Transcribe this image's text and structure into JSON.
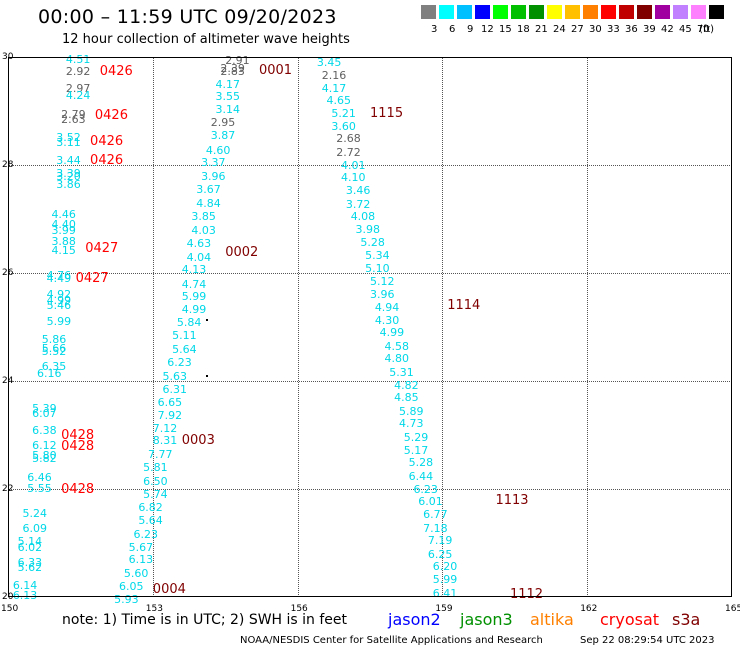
{
  "title": "00:00 – 11:59 UTC 09/20/2023",
  "subtitle": "12 hour collection of altimeter wave heights",
  "legend": {
    "colors": [
      "#808080",
      "#00ffff",
      "#00c0ff",
      "#0000ff",
      "#00ff00",
      "#00c000",
      "#009000",
      "#ffff00",
      "#ffc000",
      "#ff8000",
      "#ff0000",
      "#c00000",
      "#800000",
      "#a000a0",
      "#c080ff",
      "#ff80ff",
      "#000000"
    ],
    "labels": [
      "3",
      "6",
      "9",
      "12",
      "15",
      "18",
      "21",
      "24",
      "27",
      "30",
      "33",
      "36",
      "39",
      "42",
      "45",
      "70",
      "(ft)"
    ]
  },
  "axes": {
    "lon_range": [
      150,
      165
    ],
    "lat_range": [
      20,
      30
    ],
    "x_ticks": [
      "150",
      "153",
      "156",
      "159",
      "162",
      "165"
    ],
    "y_ticks": [
      "30",
      "28",
      "26",
      "24",
      "22",
      "20"
    ]
  },
  "note": "note:  1) Time is in UTC;  2) SWH is in feet",
  "satellites": [
    {
      "name": "jason2",
      "color": "#0000ff"
    },
    {
      "name": "jason3",
      "color": "#009000"
    },
    {
      "name": "altika",
      "color": "#ff8000"
    },
    {
      "name": "cryosat",
      "color": "#ff0000"
    },
    {
      "name": "s3a",
      "color": "#800000"
    }
  ],
  "footer_left": "NOAA/NESDIS Center for Satellite Applications and Research",
  "footer_right": "Sep 22 08:29:54 UTC 2023",
  "colors": {
    "cyan": "#00d8e8",
    "gray": "#606060",
    "cryosat": "#ff0000",
    "s3a": "#800000"
  },
  "chart_data": {
    "type": "scatter",
    "xlabel": "",
    "ylabel": "",
    "xlim": [
      150,
      165
    ],
    "ylim": [
      20,
      30
    ],
    "time_labels": [
      {
        "label": "0426",
        "sat": "cryosat",
        "lon": 151.9,
        "lat": 29.74
      },
      {
        "label": "0426",
        "sat": "cryosat",
        "lon": 151.8,
        "lat": 28.93
      },
      {
        "label": "0426",
        "sat": "cryosat",
        "lon": 151.7,
        "lat": 28.45
      },
      {
        "label": "0426",
        "sat": "cryosat",
        "lon": 151.7,
        "lat": 28.1
      },
      {
        "label": "0427",
        "sat": "cryosat",
        "lon": 151.6,
        "lat": 26.47
      },
      {
        "label": "0427",
        "sat": "cryosat",
        "lon": 151.4,
        "lat": 25.9
      },
      {
        "label": "0428",
        "sat": "cryosat",
        "lon": 151.1,
        "lat": 23.0
      },
      {
        "label": "0428",
        "sat": "cryosat",
        "lon": 151.1,
        "lat": 22.8
      },
      {
        "label": "0428",
        "sat": "cryosat",
        "lon": 151.1,
        "lat": 22.0
      },
      {
        "label": "0001",
        "sat": "s3a",
        "lon": 155.2,
        "lat": 29.76
      },
      {
        "label": "0002",
        "sat": "s3a",
        "lon": 154.5,
        "lat": 26.38
      },
      {
        "label": "0003",
        "sat": "s3a",
        "lon": 153.6,
        "lat": 22.91
      },
      {
        "label": "0004",
        "sat": "s3a",
        "lon": 153.0,
        "lat": 20.15
      },
      {
        "label": "1115",
        "sat": "s3a",
        "lon": 157.5,
        "lat": 28.97
      },
      {
        "label": "1114",
        "sat": "s3a",
        "lon": 159.1,
        "lat": 25.4
      },
      {
        "label": "1113",
        "sat": "s3a",
        "lon": 160.1,
        "lat": 21.8
      },
      {
        "label": "1112",
        "sat": "s3a",
        "lon": 160.4,
        "lat": 20.05
      }
    ],
    "points": [
      {
        "lon": 151.2,
        "lat": 29.97,
        "swh": "4.51",
        "c": "cyan"
      },
      {
        "lon": 151.2,
        "lat": 29.75,
        "swh": "2.92",
        "c": "gray"
      },
      {
        "lon": 151.2,
        "lat": 29.43,
        "swh": "2.97",
        "c": "gray"
      },
      {
        "lon": 151.2,
        "lat": 29.3,
        "swh": "4.24",
        "c": "cyan"
      },
      {
        "lon": 151.1,
        "lat": 28.95,
        "swh": "2.79",
        "c": "gray"
      },
      {
        "lon": 151.1,
        "lat": 28.85,
        "swh": "2.63",
        "c": "gray"
      },
      {
        "lon": 151.0,
        "lat": 28.52,
        "swh": "3.52",
        "c": "cyan"
      },
      {
        "lon": 151.0,
        "lat": 28.42,
        "swh": "3.11",
        "c": "cyan"
      },
      {
        "lon": 151.0,
        "lat": 28.1,
        "swh": "3.44",
        "c": "cyan"
      },
      {
        "lon": 151.0,
        "lat": 27.85,
        "swh": "3.39",
        "c": "cyan"
      },
      {
        "lon": 151.0,
        "lat": 27.8,
        "swh": "3.20",
        "c": "cyan"
      },
      {
        "lon": 151.0,
        "lat": 27.65,
        "swh": "3.86",
        "c": "cyan"
      },
      {
        "lon": 150.9,
        "lat": 27.1,
        "swh": "4.46",
        "c": "cyan"
      },
      {
        "lon": 150.9,
        "lat": 26.9,
        "swh": "4.40",
        "c": "cyan"
      },
      {
        "lon": 150.9,
        "lat": 26.8,
        "swh": "3.99",
        "c": "cyan"
      },
      {
        "lon": 150.9,
        "lat": 26.6,
        "swh": "3.88",
        "c": "cyan"
      },
      {
        "lon": 150.9,
        "lat": 26.43,
        "swh": "4.15",
        "c": "cyan"
      },
      {
        "lon": 150.8,
        "lat": 25.97,
        "swh": "4.76",
        "c": "cyan"
      },
      {
        "lon": 150.8,
        "lat": 25.9,
        "swh": "4.49",
        "c": "cyan"
      },
      {
        "lon": 150.8,
        "lat": 25.62,
        "swh": "4.92",
        "c": "cyan"
      },
      {
        "lon": 150.8,
        "lat": 25.5,
        "swh": "4.99",
        "c": "cyan"
      },
      {
        "lon": 150.8,
        "lat": 25.4,
        "swh": "5.46",
        "c": "cyan"
      },
      {
        "lon": 150.8,
        "lat": 25.12,
        "swh": "5.99",
        "c": "cyan"
      },
      {
        "lon": 150.7,
        "lat": 24.77,
        "swh": "5.86",
        "c": "cyan"
      },
      {
        "lon": 150.7,
        "lat": 24.62,
        "swh": "5.66",
        "c": "cyan"
      },
      {
        "lon": 150.7,
        "lat": 24.55,
        "swh": "5.52",
        "c": "cyan"
      },
      {
        "lon": 150.7,
        "lat": 24.27,
        "swh": "6.35",
        "c": "cyan"
      },
      {
        "lon": 150.6,
        "lat": 24.15,
        "swh": "6.16",
        "c": "cyan"
      },
      {
        "lon": 150.5,
        "lat": 23.5,
        "swh": "5.39",
        "c": "cyan"
      },
      {
        "lon": 150.5,
        "lat": 23.4,
        "swh": "6.07",
        "c": "cyan"
      },
      {
        "lon": 150.5,
        "lat": 23.1,
        "swh": "6.38",
        "c": "cyan"
      },
      {
        "lon": 150.5,
        "lat": 22.82,
        "swh": "6.12",
        "c": "cyan"
      },
      {
        "lon": 150.5,
        "lat": 22.63,
        "swh": "5.80",
        "c": "cyan"
      },
      {
        "lon": 150.5,
        "lat": 22.57,
        "swh": "5.82",
        "c": "cyan"
      },
      {
        "lon": 150.4,
        "lat": 22.22,
        "swh": "6.46",
        "c": "cyan"
      },
      {
        "lon": 150.4,
        "lat": 22.02,
        "swh": "5.55",
        "c": "cyan"
      },
      {
        "lon": 150.3,
        "lat": 21.55,
        "swh": "5.24",
        "c": "cyan"
      },
      {
        "lon": 150.3,
        "lat": 21.28,
        "swh": "6.09",
        "c": "cyan"
      },
      {
        "lon": 150.2,
        "lat": 21.03,
        "swh": "5.14",
        "c": "cyan"
      },
      {
        "lon": 150.2,
        "lat": 20.93,
        "swh": "6.02",
        "c": "cyan"
      },
      {
        "lon": 150.2,
        "lat": 20.65,
        "swh": "6.33",
        "c": "cyan"
      },
      {
        "lon": 150.2,
        "lat": 20.55,
        "swh": "5.62",
        "c": "cyan"
      },
      {
        "lon": 150.1,
        "lat": 20.22,
        "swh": "6.14",
        "c": "cyan"
      },
      {
        "lon": 150.1,
        "lat": 20.03,
        "swh": "6.13",
        "c": "cyan"
      },
      {
        "lon": 154.5,
        "lat": 29.95,
        "swh": "2.91",
        "c": "gray"
      },
      {
        "lon": 154.4,
        "lat": 29.8,
        "swh": "2.39",
        "c": "gray"
      },
      {
        "lon": 154.4,
        "lat": 29.75,
        "swh": "2.83",
        "c": "gray"
      },
      {
        "lon": 154.3,
        "lat": 29.5,
        "swh": "4.17",
        "c": "cyan"
      },
      {
        "lon": 154.3,
        "lat": 29.27,
        "swh": "3.55",
        "c": "cyan"
      },
      {
        "lon": 154.3,
        "lat": 29.03,
        "swh": "3.14",
        "c": "cyan"
      },
      {
        "lon": 154.2,
        "lat": 28.8,
        "swh": "2.95",
        "c": "gray"
      },
      {
        "lon": 154.2,
        "lat": 28.55,
        "swh": "3.87",
        "c": "cyan"
      },
      {
        "lon": 154.1,
        "lat": 28.28,
        "swh": "4.60",
        "c": "cyan"
      },
      {
        "lon": 154.0,
        "lat": 28.05,
        "swh": "3.37",
        "c": "cyan"
      },
      {
        "lon": 154.0,
        "lat": 27.8,
        "swh": "3.96",
        "c": "cyan"
      },
      {
        "lon": 153.9,
        "lat": 27.55,
        "swh": "3.67",
        "c": "cyan"
      },
      {
        "lon": 153.9,
        "lat": 27.3,
        "swh": "4.84",
        "c": "cyan"
      },
      {
        "lon": 153.8,
        "lat": 27.05,
        "swh": "3.85",
        "c": "cyan"
      },
      {
        "lon": 153.8,
        "lat": 26.8,
        "swh": "4.03",
        "c": "cyan"
      },
      {
        "lon": 153.7,
        "lat": 26.55,
        "swh": "4.63",
        "c": "cyan"
      },
      {
        "lon": 153.7,
        "lat": 26.3,
        "swh": "4.04",
        "c": "cyan"
      },
      {
        "lon": 153.6,
        "lat": 26.07,
        "swh": "4.13",
        "c": "cyan"
      },
      {
        "lon": 153.6,
        "lat": 25.8,
        "swh": "4.74",
        "c": "cyan"
      },
      {
        "lon": 153.6,
        "lat": 25.57,
        "swh": "5.99",
        "c": "cyan"
      },
      {
        "lon": 153.6,
        "lat": 25.33,
        "swh": "4.99",
        "c": "cyan"
      },
      {
        "lon": 153.5,
        "lat": 25.1,
        "swh": "5.84",
        "c": "cyan"
      },
      {
        "lon": 153.4,
        "lat": 24.85,
        "swh": "5.11",
        "c": "cyan"
      },
      {
        "lon": 153.4,
        "lat": 24.6,
        "swh": "5.64",
        "c": "cyan"
      },
      {
        "lon": 153.3,
        "lat": 24.35,
        "swh": "6.23",
        "c": "cyan"
      },
      {
        "lon": 153.2,
        "lat": 24.1,
        "swh": "5.63",
        "c": "cyan"
      },
      {
        "lon": 153.2,
        "lat": 23.86,
        "swh": "6.31",
        "c": "cyan"
      },
      {
        "lon": 153.1,
        "lat": 23.62,
        "swh": "6.65",
        "c": "cyan"
      },
      {
        "lon": 153.1,
        "lat": 23.37,
        "swh": "7.92",
        "c": "cyan"
      },
      {
        "lon": 153.0,
        "lat": 23.13,
        "swh": "7.12",
        "c": "cyan"
      },
      {
        "lon": 153.0,
        "lat": 22.9,
        "swh": "8.31",
        "c": "cyan"
      },
      {
        "lon": 152.9,
        "lat": 22.65,
        "swh": "7.77",
        "c": "cyan"
      },
      {
        "lon": 152.8,
        "lat": 22.4,
        "swh": "5.81",
        "c": "cyan"
      },
      {
        "lon": 152.8,
        "lat": 22.15,
        "swh": "6.50",
        "c": "cyan"
      },
      {
        "lon": 152.8,
        "lat": 21.9,
        "swh": "5.74",
        "c": "cyan"
      },
      {
        "lon": 152.7,
        "lat": 21.66,
        "swh": "6.82",
        "c": "cyan"
      },
      {
        "lon": 152.7,
        "lat": 21.43,
        "swh": "5.64",
        "c": "cyan"
      },
      {
        "lon": 152.6,
        "lat": 21.17,
        "swh": "6.23",
        "c": "cyan"
      },
      {
        "lon": 152.5,
        "lat": 20.93,
        "swh": "5.67",
        "c": "cyan"
      },
      {
        "lon": 152.5,
        "lat": 20.7,
        "swh": "6.13",
        "c": "cyan"
      },
      {
        "lon": 152.4,
        "lat": 20.45,
        "swh": "5.60",
        "c": "cyan"
      },
      {
        "lon": 152.3,
        "lat": 20.2,
        "swh": "6.05",
        "c": "cyan"
      },
      {
        "lon": 152.2,
        "lat": 19.97,
        "swh": "5.93",
        "c": "cyan"
      },
      {
        "lon": 156.4,
        "lat": 29.9,
        "swh": "3.45",
        "c": "cyan"
      },
      {
        "lon": 156.5,
        "lat": 29.67,
        "swh": "2.16",
        "c": "gray"
      },
      {
        "lon": 156.5,
        "lat": 29.43,
        "swh": "4.17",
        "c": "cyan"
      },
      {
        "lon": 156.6,
        "lat": 29.2,
        "swh": "4.65",
        "c": "cyan"
      },
      {
        "lon": 156.7,
        "lat": 28.97,
        "swh": "5.21",
        "c": "cyan"
      },
      {
        "lon": 156.7,
        "lat": 28.73,
        "swh": "3.60",
        "c": "cyan"
      },
      {
        "lon": 156.8,
        "lat": 28.5,
        "swh": "2.68",
        "c": "gray"
      },
      {
        "lon": 156.8,
        "lat": 28.25,
        "swh": "2.72",
        "c": "gray"
      },
      {
        "lon": 156.9,
        "lat": 28.0,
        "swh": "4.01",
        "c": "cyan"
      },
      {
        "lon": 156.9,
        "lat": 27.77,
        "swh": "4.10",
        "c": "cyan"
      },
      {
        "lon": 157.0,
        "lat": 27.53,
        "swh": "3.46",
        "c": "cyan"
      },
      {
        "lon": 157.0,
        "lat": 27.28,
        "swh": "3.72",
        "c": "cyan"
      },
      {
        "lon": 157.1,
        "lat": 27.05,
        "swh": "4.08",
        "c": "cyan"
      },
      {
        "lon": 157.2,
        "lat": 26.82,
        "swh": "3.98",
        "c": "cyan"
      },
      {
        "lon": 157.3,
        "lat": 26.57,
        "swh": "5.28",
        "c": "cyan"
      },
      {
        "lon": 157.4,
        "lat": 26.33,
        "swh": "5.34",
        "c": "cyan"
      },
      {
        "lon": 157.4,
        "lat": 26.1,
        "swh": "5.10",
        "c": "cyan"
      },
      {
        "lon": 157.5,
        "lat": 25.85,
        "swh": "5.12",
        "c": "cyan"
      },
      {
        "lon": 157.5,
        "lat": 25.62,
        "swh": "3.96",
        "c": "cyan"
      },
      {
        "lon": 157.6,
        "lat": 25.37,
        "swh": "4.94",
        "c": "cyan"
      },
      {
        "lon": 157.6,
        "lat": 25.13,
        "swh": "4.30",
        "c": "cyan"
      },
      {
        "lon": 157.7,
        "lat": 24.9,
        "swh": "4.99",
        "c": "cyan"
      },
      {
        "lon": 157.8,
        "lat": 24.65,
        "swh": "4.58",
        "c": "cyan"
      },
      {
        "lon": 157.8,
        "lat": 24.42,
        "swh": "4.80",
        "c": "cyan"
      },
      {
        "lon": 157.9,
        "lat": 24.17,
        "swh": "5.31",
        "c": "cyan"
      },
      {
        "lon": 158.0,
        "lat": 23.93,
        "swh": "4.82",
        "c": "cyan"
      },
      {
        "lon": 158.0,
        "lat": 23.7,
        "swh": "4.85",
        "c": "cyan"
      },
      {
        "lon": 158.1,
        "lat": 23.45,
        "swh": "5.89",
        "c": "cyan"
      },
      {
        "lon": 158.1,
        "lat": 23.22,
        "swh": "4.73",
        "c": "cyan"
      },
      {
        "lon": 158.2,
        "lat": 22.97,
        "swh": "5.29",
        "c": "cyan"
      },
      {
        "lon": 158.2,
        "lat": 22.73,
        "swh": "5.17",
        "c": "cyan"
      },
      {
        "lon": 158.3,
        "lat": 22.5,
        "swh": "5.28",
        "c": "cyan"
      },
      {
        "lon": 158.3,
        "lat": 22.25,
        "swh": "6.44",
        "c": "cyan"
      },
      {
        "lon": 158.4,
        "lat": 22.0,
        "swh": "6.23",
        "c": "cyan"
      },
      {
        "lon": 158.5,
        "lat": 21.77,
        "swh": "6.01",
        "c": "cyan"
      },
      {
        "lon": 158.6,
        "lat": 21.53,
        "swh": "6.77",
        "c": "cyan"
      },
      {
        "lon": 158.6,
        "lat": 21.28,
        "swh": "7.18",
        "c": "cyan"
      },
      {
        "lon": 158.7,
        "lat": 21.05,
        "swh": "7.19",
        "c": "cyan"
      },
      {
        "lon": 158.7,
        "lat": 20.8,
        "swh": "6.25",
        "c": "cyan"
      },
      {
        "lon": 158.8,
        "lat": 20.57,
        "swh": "6.20",
        "c": "cyan"
      },
      {
        "lon": 158.8,
        "lat": 20.33,
        "swh": "5.99",
        "c": "cyan"
      },
      {
        "lon": 158.8,
        "lat": 20.08,
        "swh": "6.41",
        "c": "cyan"
      }
    ],
    "markers": [
      {
        "lon": 154.1,
        "lat": 25.15
      },
      {
        "lon": 154.1,
        "lat": 24.12
      }
    ]
  }
}
